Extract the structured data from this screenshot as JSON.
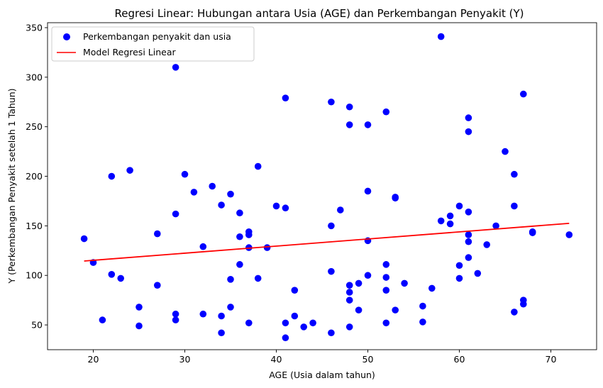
{
  "chart_data": {
    "type": "scatter",
    "title": "Regresi Linear: Hubungan antara Usia (AGE) dan Perkembangan Penyakit (Y)",
    "xlabel": "AGE (Usia dalam tahun)",
    "ylabel": "Y (Perkembangan Penyakit setelah 1 Tahun)",
    "xlim": [
      15,
      75
    ],
    "ylim": [
      25,
      355
    ],
    "xticks": [
      20,
      30,
      40,
      50,
      60,
      70
    ],
    "yticks": [
      50,
      100,
      150,
      200,
      250,
      300,
      350
    ],
    "grid": false,
    "legend_position": "top-left",
    "series": [
      {
        "name": "Perkembangan penyakit dan usia",
        "kind": "scatter",
        "color": "#0000ff",
        "points": [
          [
            19,
            137
          ],
          [
            20,
            113
          ],
          [
            21,
            55
          ],
          [
            22,
            200
          ],
          [
            22,
            101
          ],
          [
            23,
            97
          ],
          [
            24,
            206
          ],
          [
            25,
            68
          ],
          [
            25,
            49
          ],
          [
            27,
            142
          ],
          [
            27,
            90
          ],
          [
            29,
            310
          ],
          [
            29,
            162
          ],
          [
            29,
            61
          ],
          [
            29,
            55
          ],
          [
            30,
            202
          ],
          [
            31,
            184
          ],
          [
            32,
            129
          ],
          [
            32,
            61
          ],
          [
            33,
            190
          ],
          [
            34,
            171
          ],
          [
            34,
            59
          ],
          [
            34,
            42
          ],
          [
            35,
            182
          ],
          [
            35,
            96
          ],
          [
            35,
            68
          ],
          [
            36,
            163
          ],
          [
            36,
            139
          ],
          [
            36,
            111
          ],
          [
            37,
            144
          ],
          [
            37,
            141
          ],
          [
            37,
            128
          ],
          [
            37,
            52
          ],
          [
            38,
            210
          ],
          [
            38,
            97
          ],
          [
            39,
            128
          ],
          [
            40,
            170
          ],
          [
            41,
            279
          ],
          [
            41,
            168
          ],
          [
            41,
            52
          ],
          [
            41,
            37
          ],
          [
            42,
            85
          ],
          [
            42,
            59
          ],
          [
            43,
            48
          ],
          [
            44,
            52
          ],
          [
            46,
            275
          ],
          [
            46,
            150
          ],
          [
            46,
            104
          ],
          [
            46,
            42
          ],
          [
            47,
            166
          ],
          [
            48,
            270
          ],
          [
            48,
            252
          ],
          [
            48,
            90
          ],
          [
            48,
            83
          ],
          [
            48,
            75
          ],
          [
            48,
            48
          ],
          [
            49,
            92
          ],
          [
            49,
            65
          ],
          [
            50,
            252
          ],
          [
            50,
            185
          ],
          [
            50,
            135
          ],
          [
            50,
            100
          ],
          [
            52,
            265
          ],
          [
            52,
            111
          ],
          [
            52,
            98
          ],
          [
            52,
            85
          ],
          [
            52,
            52
          ],
          [
            53,
            179
          ],
          [
            53,
            178
          ],
          [
            53,
            65
          ],
          [
            54,
            92
          ],
          [
            56,
            69
          ],
          [
            56,
            53
          ],
          [
            57,
            87
          ],
          [
            58,
            341
          ],
          [
            58,
            155
          ],
          [
            59,
            160
          ],
          [
            59,
            152
          ],
          [
            60,
            170
          ],
          [
            60,
            110
          ],
          [
            60,
            97
          ],
          [
            61,
            259
          ],
          [
            61,
            245
          ],
          [
            61,
            164
          ],
          [
            61,
            141
          ],
          [
            61,
            134
          ],
          [
            61,
            118
          ],
          [
            62,
            102
          ],
          [
            63,
            131
          ],
          [
            64,
            150
          ],
          [
            65,
            225
          ],
          [
            66,
            202
          ],
          [
            66,
            170
          ],
          [
            66,
            63
          ],
          [
            67,
            283
          ],
          [
            67,
            75
          ],
          [
            67,
            71
          ],
          [
            68,
            144
          ],
          [
            68,
            143
          ],
          [
            72,
            141
          ]
        ]
      },
      {
        "name": "Model Regresi Linear",
        "kind": "line",
        "color": "#ff0000",
        "points": [
          [
            19,
            114.5
          ],
          [
            72,
            152.5
          ]
        ]
      }
    ]
  }
}
